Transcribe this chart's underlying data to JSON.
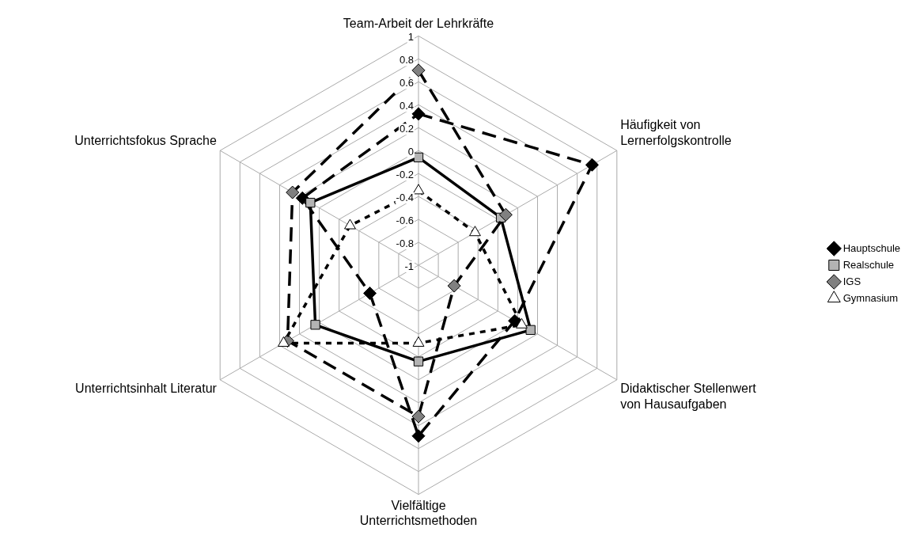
{
  "chart_data": {
    "type": "radar",
    "categories": [
      "Team-Arbeit der Lehrkräfte",
      "Häufigkeit von Lernerfolgskontrolle",
      "Didaktischer Stellenwert von Hausaufgaben",
      "Vielfältige Unterrichtsmethoden",
      "Unterrichtsinhalt Literatur",
      "Unterrichtsfokus Sprache"
    ],
    "series": [
      {
        "name": "Hauptschule",
        "color": "#000000",
        "marker": "diamond",
        "line_style": "dashed",
        "values": [
          0.32,
          0.75,
          -0.03,
          0.49,
          -0.51,
          0.17
        ]
      },
      {
        "name": "Realschule",
        "color": "#000000",
        "marker": "square",
        "line_style": "solid",
        "values": [
          -0.06,
          -0.17,
          0.13,
          -0.16,
          0.04,
          0.09
        ]
      },
      {
        "name": "IGS",
        "color": "#000000",
        "marker": "diamond",
        "line_style": "dashed",
        "values": [
          0.7,
          -0.12,
          -0.64,
          0.32,
          0.32,
          0.27
        ]
      },
      {
        "name": "Gymnasium",
        "color": "#000000",
        "marker": "triangle",
        "line_style": "dotted",
        "values": [
          -0.35,
          -0.43,
          0.04,
          -0.32,
          0.36,
          -0.31
        ]
      }
    ],
    "ylim": [
      -1,
      1
    ],
    "yticks": [
      -1,
      -0.8,
      -0.6,
      -0.4,
      -0.2,
      0,
      0.2,
      0.4,
      0.6,
      0.8,
      1
    ],
    "grid": true,
    "legend": "right"
  }
}
